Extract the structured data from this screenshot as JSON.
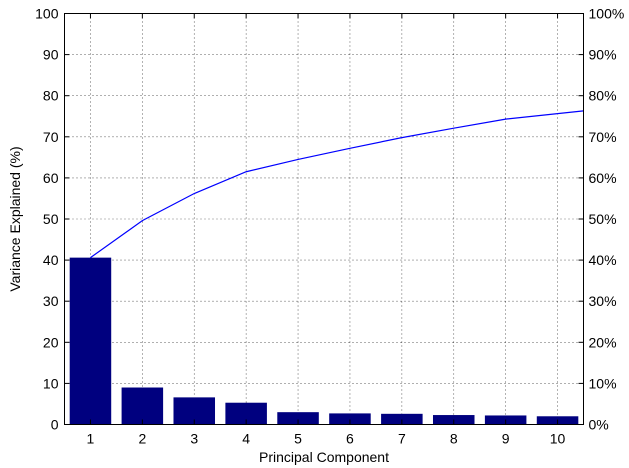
{
  "chart_data": {
    "type": "bar",
    "title": "",
    "xlabel": "Principal Component",
    "ylabel": "Variance Explained (%)",
    "categories": [
      "1",
      "2",
      "3",
      "4",
      "5",
      "6",
      "7",
      "8",
      "9",
      "10"
    ],
    "series": [
      {
        "type": "bar",
        "values": [
          40.6,
          9.0,
          6.6,
          5.3,
          3.0,
          2.7,
          2.6,
          2.3,
          2.2,
          2.0
        ]
      },
      {
        "type": "line",
        "axis": "right",
        "values": [
          40.6,
          49.6,
          56.2,
          61.5,
          64.5,
          67.2,
          69.8,
          72.1,
          74.3,
          76.3
        ]
      }
    ],
    "ylim": [
      0,
      100
    ],
    "yticks": [
      "0",
      "10",
      "20",
      "30",
      "40",
      "50",
      "60",
      "70",
      "80",
      "90",
      "100"
    ],
    "y2ticks": [
      "0%",
      "10%",
      "20%",
      "30%",
      "40%",
      "50%",
      "60%",
      "70%",
      "80%",
      "90%",
      "100%"
    ],
    "grid": true,
    "colors": {
      "bar": "#00007f",
      "line": "#0000ff"
    }
  }
}
